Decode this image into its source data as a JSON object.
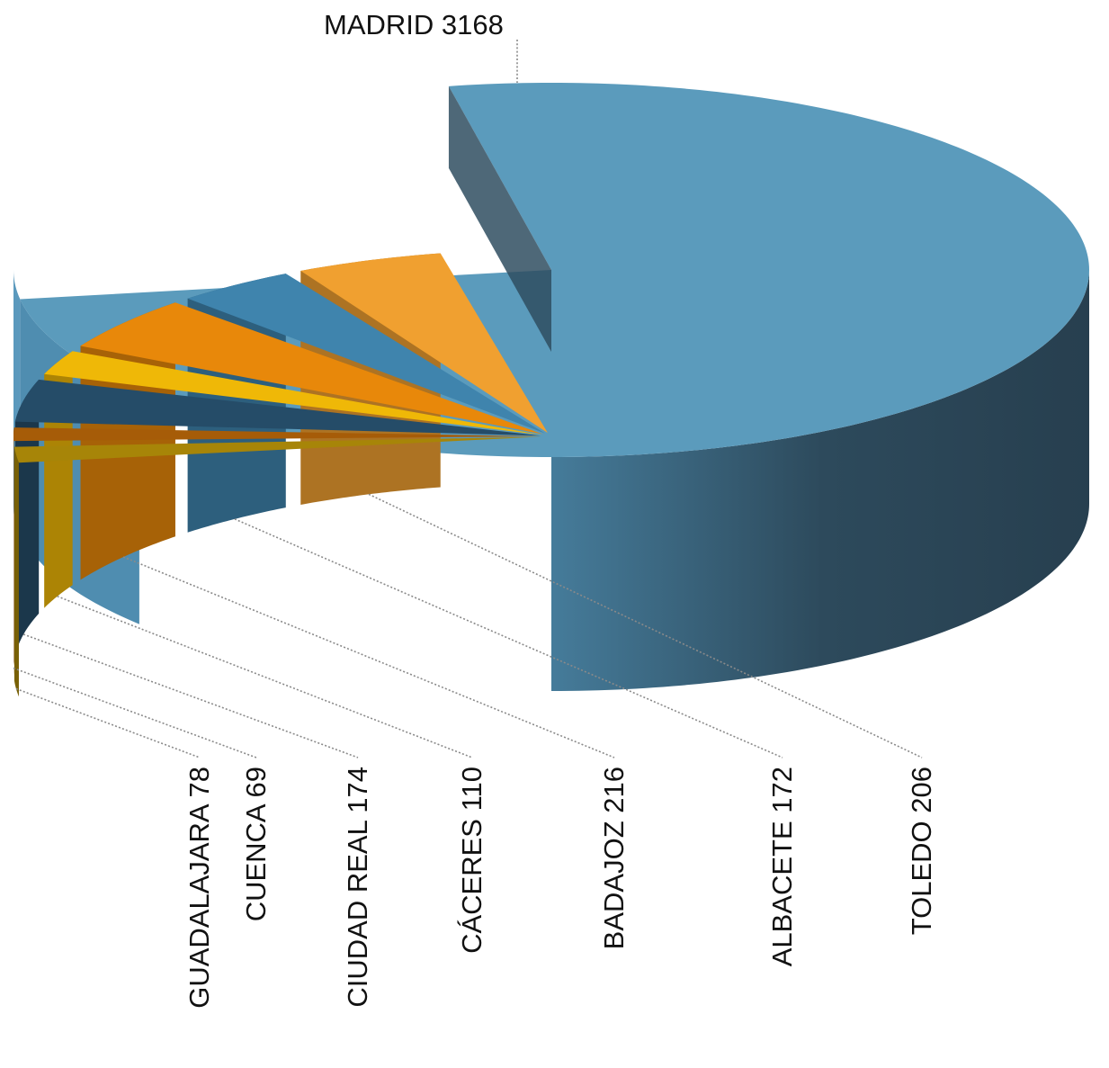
{
  "chart_data": {
    "type": "pie",
    "variant": "3d-exploded",
    "title": "",
    "legend": "none",
    "slices": [
      {
        "label": "MADRID",
        "value": 3168,
        "color": "#5b9bbc"
      },
      {
        "label": "TOLEDO",
        "value": 206,
        "color": "#f0a030"
      },
      {
        "label": "ALBACETE",
        "value": 172,
        "color": "#3f84ad"
      },
      {
        "label": "BADAJOZ",
        "value": 216,
        "color": "#e8880a"
      },
      {
        "label": "CÁCERES",
        "value": 110,
        "color": "#efb807"
      },
      {
        "label": "CIUDAD REAL",
        "value": 174,
        "color": "#254c68"
      },
      {
        "label": "CUENCA",
        "value": 69,
        "color": "#a65c08"
      },
      {
        "label": "GUADALAJARA",
        "value": 78,
        "color": "#a78508"
      }
    ]
  }
}
